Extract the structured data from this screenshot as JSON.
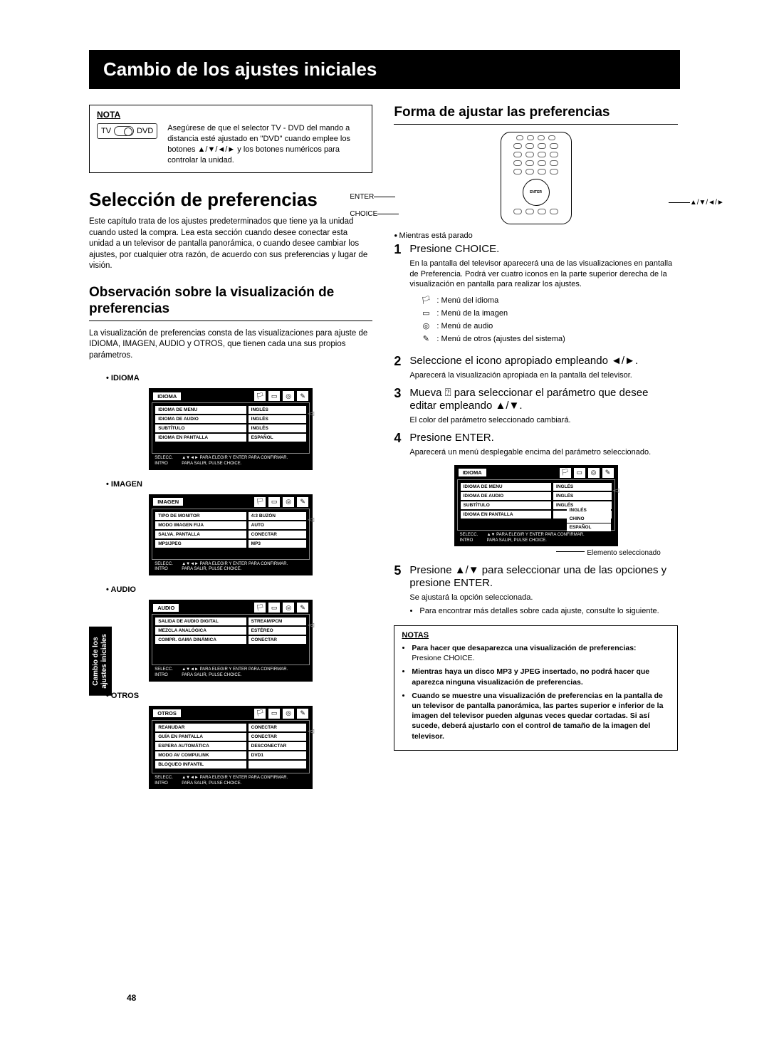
{
  "page_number": "48",
  "title_bar": "Cambio de los ajustes iniciales",
  "side_tab_line1": "Cambio de los",
  "side_tab_line2": "ajustes iniciales",
  "nota": {
    "title": "NOTA",
    "tv": "TV",
    "dvd": "DVD",
    "text": "Asegúrese de que el selector TV - DVD del mando a distancia esté ajustado en \"DVD\" cuando emplee los botones ▲/▼/◄/► y los botones numéricos para controlar la unidad."
  },
  "left": {
    "h1": "Selección de preferencias",
    "intro": "Este capítulo trata de los ajustes predeterminados que tiene ya la unidad cuando usted la compra. Lea esta sección cuando desee conectar esta unidad a un televisor de pantalla panorámica, o cuando desee cambiar los ajustes, por cualquier otra razón, de acuerdo con sus preferencias y lugar de visión.",
    "h2": "Observación sobre la visualización de preferencias",
    "h2_text": "La visualización de preferencias consta de las visualizaciones para ajuste de IDIOMA, IMAGEN, AUDIO y OTROS, que tienen cada una sus propios parámetros.",
    "menus": {
      "idioma": {
        "label": "IDIOMA",
        "title": "IDIOMA",
        "rows": [
          {
            "l": "IDIOMA DE MENU",
            "v": "INGLÉS"
          },
          {
            "l": "IDIOMA DE AUDIO",
            "v": "INGLÉS"
          },
          {
            "l": "SUBTÍTULO",
            "v": "INGLÉS"
          },
          {
            "l": "IDIOMA EN PANTALLA",
            "v": "ESPAÑOL"
          }
        ],
        "footer_l": "SELECC.\nINTRO",
        "footer_r": "▲▼◄► PARA ELEGIR Y ENTER PARA CONFIRMAR.\nPARA SALIR, PULSE CHOICE."
      },
      "imagen": {
        "label": "IMAGEN",
        "title": "IMAGEN",
        "rows": [
          {
            "l": "TIPO DE MONITOR",
            "v": "4:3 BUZÓN"
          },
          {
            "l": "MODO IMAGEN FIJA",
            "v": "AUTO"
          },
          {
            "l": "SALVA. PANTALLA",
            "v": "CONECTAR"
          },
          {
            "l": "MP3/JPEG",
            "v": "MP3"
          }
        ],
        "footer_l": "SELECC.\nINTRO",
        "footer_r": "▲▼◄► PARA ELEGIR Y ENTER PARA CONFIRMAR.\nPARA SALIR, PULSE CHOICE."
      },
      "audio": {
        "label": "AUDIO",
        "title": "AUDIO",
        "rows": [
          {
            "l": "SALIDA DE AUDIO DIGITAL",
            "v": "STREAM/PCM"
          },
          {
            "l": "MEZCLA ANALÓGICA",
            "v": "ESTÉREO"
          },
          {
            "l": "COMPR. GAMA DINÁMICA",
            "v": "CONECTAR"
          }
        ],
        "footer_l": "SELECC.\nINTRO",
        "footer_r": "▲▼◄► PARA ELEGIR Y ENTER PARA CONFIRMAR.\nPARA SALIR, PULSE CHOICE."
      },
      "otros": {
        "label": "OTROS",
        "title": "OTROS",
        "rows": [
          {
            "l": "REANUDAR",
            "v": "CONECTAR"
          },
          {
            "l": "GUÍA EN PANTALLA",
            "v": "CONECTAR"
          },
          {
            "l": "ESPERA AUTOMÁTICA",
            "v": "DESCONECTAR"
          },
          {
            "l": "MODO AV COMPULINK",
            "v": "DVD1"
          },
          {
            "l": "BLOQUEO INFANTIL",
            "v": ""
          }
        ],
        "footer_l": "SELECC.\nINTRO",
        "footer_r": "▲▼◄► PARA ELEGIR Y ENTER PARA CONFIRMAR.\nPARA SALIR, PULSE CHOICE."
      }
    }
  },
  "right": {
    "h2": "Forma de ajustar las preferencias",
    "remote": {
      "enter": "ENTER",
      "choice": "CHOICE",
      "arrows": "▲/▼/◄/►"
    },
    "pre_step": "Mientras está parado",
    "steps": {
      "s1": {
        "n": "1",
        "head": "Presione CHOICE.",
        "text": "En la pantalla del televisor aparecerá una de las visualizaciones en pantalla de Preferencia. Podrá ver cuatro iconos en la parte superior derecha de la visualización en pantalla para realizar los ajustes.",
        "icons": [
          {
            "g": "🏳",
            "t": ": Menú del idioma"
          },
          {
            "g": "▭",
            "t": ": Menú de la imagen"
          },
          {
            "g": "◎",
            "t": ": Menú de audio"
          },
          {
            "g": "✎",
            "t": ": Menú de otros (ajustes del sistema)"
          }
        ]
      },
      "s2": {
        "n": "2",
        "head": "Seleccione el icono apropiado empleando ◄/►.",
        "text": "Aparecerá la visualización apropiada en la pantalla del televisor."
      },
      "s3": {
        "n": "3",
        "head": "Mueva ⍰ para seleccionar el parámetro que desee editar empleando ▲/▼.",
        "text": "El color del parámetro seleccionado cambiará."
      },
      "s4": {
        "n": "4",
        "head": "Presione ENTER.",
        "text": "Aparecerá un menú desplegable encima del parámetro seleccionado."
      },
      "s5": {
        "n": "5",
        "head": "Presione ▲/▼ para seleccionar una de las opciones y presione ENTER.",
        "text": "Se ajustará la opción seleccionada.",
        "bullet": "Para encontrar más detalles sobre cada ajuste, consulte lo siguiente."
      }
    },
    "dropdown_menu": {
      "title": "IDIOMA",
      "rows": [
        {
          "l": "IDIOMA DE MENU",
          "v": "INGLÉS"
        },
        {
          "l": "IDIOMA DE AUDIO",
          "v": "INGLÉS"
        },
        {
          "l": "SUBTÍTULO",
          "v": "INGLÉS"
        },
        {
          "l": "IDIOMA EN PANTALLA",
          "v": ""
        }
      ],
      "dropdown": [
        "INGLÉS",
        "CHINO",
        "ESPAÑOL"
      ],
      "footer_l": "SELECC.\nINTRO",
      "footer_r": "▲▼ PARA ELEGIR Y ENTER PARA CONFIRMAR.\nPARA SALIR, PULSE CHOICE.",
      "elem_label": "Elemento seleccionado"
    },
    "notas": {
      "title": "NOTAS",
      "items": [
        {
          "b": "Para hacer que desaparezca una visualización de preferencias:",
          "s": "Presione CHOICE."
        },
        {
          "b": "Mientras haya un disco MP3 y JPEG insertado, no podrá hacer que aparezca ninguna visualización de preferencias.",
          "s": ""
        },
        {
          "b": "Cuando se muestre una visualización de preferencias en la pantalla de un televisor de pantalla panorámica, las partes superior e inferior de la imagen del televisor pueden algunas veces quedar cortadas. Si así sucede, deberá ajustarlo con el control de tamaño de la imagen del televisor.",
          "s": ""
        }
      ]
    }
  }
}
